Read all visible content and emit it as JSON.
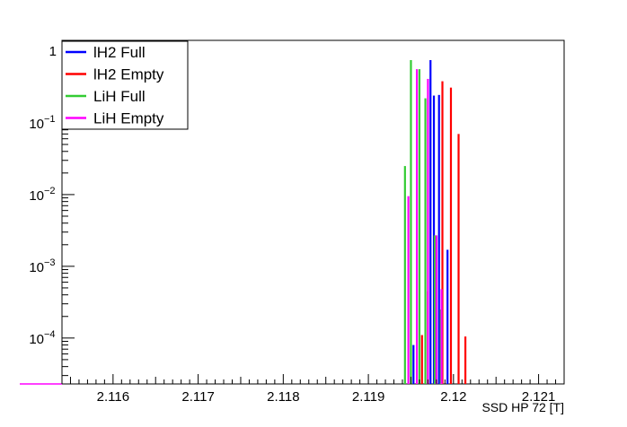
{
  "chart_data": {
    "type": "bar",
    "xlabel": "SSD HP 72 [T]",
    "xlim": [
      2.1154,
      2.1213
    ],
    "ylim_log10": [
      -4.64,
      0.15
    ],
    "log_y": true,
    "grid": false,
    "legend_position": "top-left",
    "x_ticks": [
      {
        "value": 2.116,
        "label": "2.116"
      },
      {
        "value": 2.117,
        "label": "2.117"
      },
      {
        "value": 2.118,
        "label": "2.118"
      },
      {
        "value": 2.119,
        "label": "2.119"
      },
      {
        "value": 2.12,
        "label": "2.12"
      },
      {
        "value": 2.121,
        "label": "2.121"
      }
    ],
    "y_ticks": [
      {
        "exp": 0,
        "base": "1",
        "sup": ""
      },
      {
        "exp": -1,
        "base": "10",
        "sup": "−1"
      },
      {
        "exp": -2,
        "base": "10",
        "sup": "−2"
      },
      {
        "exp": -3,
        "base": "10",
        "sup": "−3"
      },
      {
        "exp": -4,
        "base": "10",
        "sup": "−4"
      }
    ],
    "series": [
      {
        "name": "lH2 Full",
        "color": "#0000ff",
        "points": [
          [
            2.11953,
            8e-05
          ],
          [
            2.11973,
            0.75
          ],
          [
            2.11977,
            0.24
          ],
          [
            2.11983,
            0.245
          ],
          [
            2.11993,
            0.0017
          ]
        ]
      },
      {
        "name": "lH2 Empty",
        "color": "#ff0000",
        "points": [
          [
            2.11963,
            0.00011
          ],
          [
            2.1197,
            0.00045
          ],
          [
            2.11987,
            0.38
          ],
          [
            2.11997,
            0.31
          ],
          [
            2.12006,
            0.07
          ],
          [
            2.12014,
            0.000105
          ]
        ]
      },
      {
        "name": "LiH Full",
        "color": "#33cc33",
        "points": [
          [
            2.11943,
            0.025
          ],
          [
            2.1195,
            0.75
          ],
          [
            2.1196,
            0.56
          ],
          [
            2.11967,
            0.22
          ],
          [
            2.11978,
            0.0027
          ],
          [
            2.11985,
            0.00025
          ]
        ]
      },
      {
        "name": "LiH Empty",
        "color": "#ff00ff",
        "points": [
          [
            2.11947,
            0.0095
          ],
          [
            2.11957,
            0.56
          ],
          [
            2.1197,
            0.41
          ],
          [
            2.1198,
            0.0027
          ],
          [
            2.11986,
            0.00048
          ]
        ]
      }
    ]
  }
}
